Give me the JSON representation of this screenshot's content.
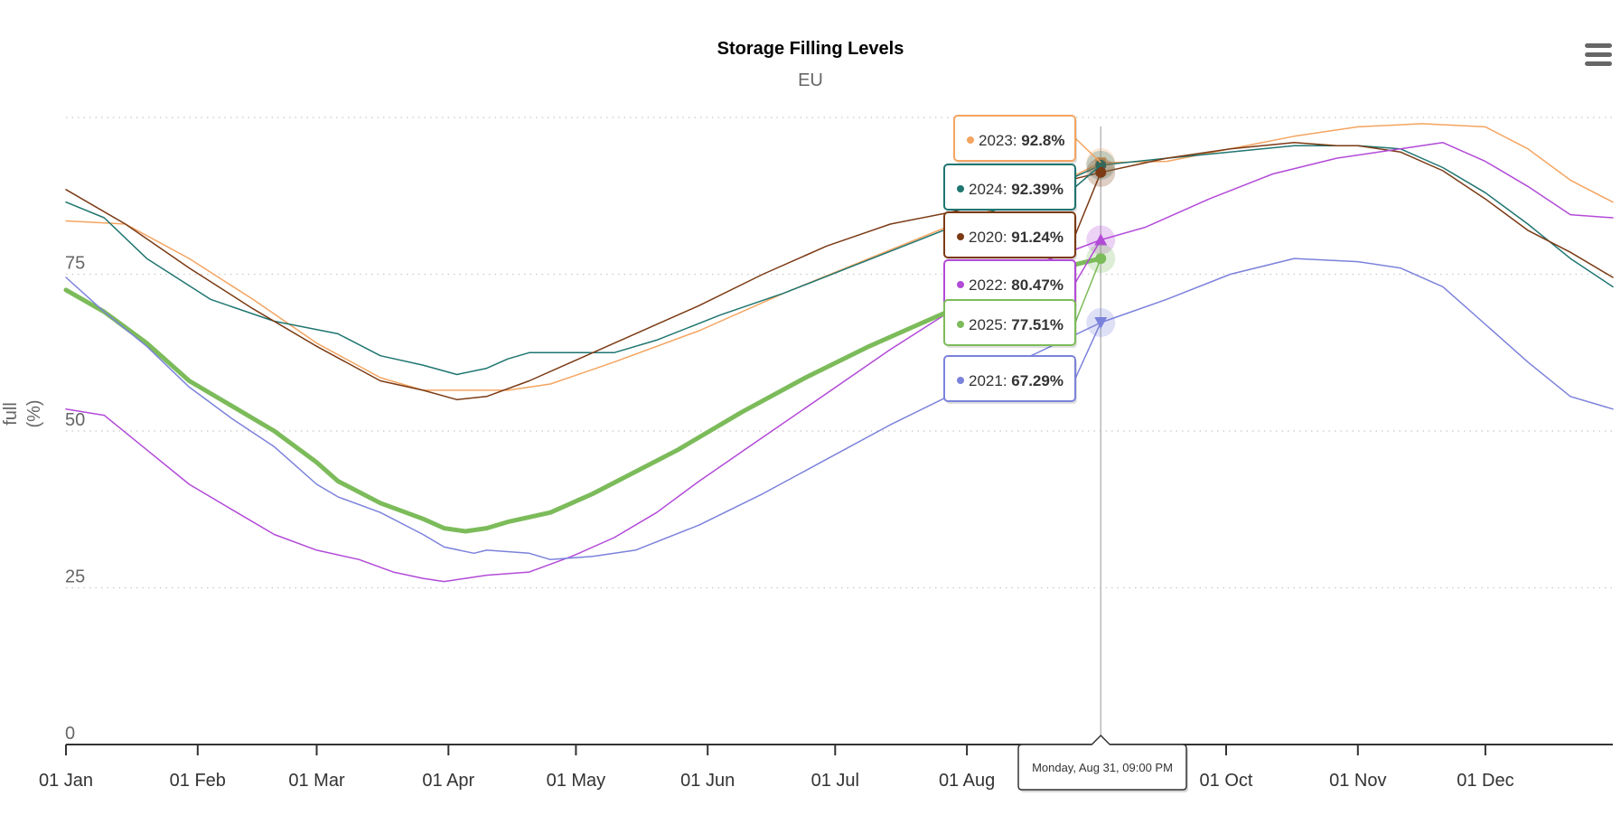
{
  "chart_data": {
    "type": "line",
    "title": "Storage Filling Levels",
    "subtitle": "EU",
    "ylabel": "full (%)",
    "ylim": [
      0,
      100
    ],
    "yticks": [
      0,
      25,
      50,
      75
    ],
    "grid": "horizontal dotted",
    "xlim": [
      "01 Jan",
      "31 Dec"
    ],
    "x_ticks": [
      {
        "label": "01 Jan",
        "day": 1
      },
      {
        "label": "01 Feb",
        "day": 32
      },
      {
        "label": "01 Mar",
        "day": 60
      },
      {
        "label": "01 Apr",
        "day": 91
      },
      {
        "label": "01 May",
        "day": 121
      },
      {
        "label": "01 Jun",
        "day": 152
      },
      {
        "label": "01 Jul",
        "day": 182
      },
      {
        "label": "01 Aug",
        "day": 213
      },
      {
        "label": "01 Sep",
        "day": 244
      },
      {
        "label": "01 Oct",
        "day": 274
      },
      {
        "label": "01 Nov",
        "day": 305
      },
      {
        "label": "01 Dec",
        "day": 335
      }
    ],
    "hover": {
      "date_label": "Monday, Aug 31, 09:00 PM",
      "day": 244.5,
      "entries": [
        {
          "year": "2023",
          "value_label": "92.8%"
        },
        {
          "year": "2024",
          "value_label": "92.39%"
        },
        {
          "year": "2020",
          "value_label": "91.24%"
        },
        {
          "year": "2022",
          "value_label": "80.47%"
        },
        {
          "year": "2025",
          "value_label": "77.51%"
        },
        {
          "year": "2021",
          "value_label": "67.29%"
        }
      ]
    },
    "series": [
      {
        "name": "2023",
        "color": "#f4a460",
        "marker": "square",
        "stroke": 1.5,
        "points": [
          [
            1,
            83.5
          ],
          [
            15,
            83
          ],
          [
            30,
            77.5
          ],
          [
            45,
            71
          ],
          [
            60,
            64
          ],
          [
            75,
            58.5
          ],
          [
            85,
            56.5
          ],
          [
            95,
            56.5
          ],
          [
            105,
            56.5
          ],
          [
            115,
            57.5
          ],
          [
            130,
            61
          ],
          [
            150,
            66
          ],
          [
            170,
            72
          ],
          [
            190,
            77.5
          ],
          [
            210,
            83
          ],
          [
            230,
            88
          ],
          [
            244.5,
            92.8
          ],
          [
            260,
            93
          ],
          [
            275,
            95
          ],
          [
            290,
            97
          ],
          [
            305,
            98.5
          ],
          [
            320,
            99
          ],
          [
            335,
            98.5
          ],
          [
            345,
            95
          ],
          [
            355,
            90
          ],
          [
            365,
            86.5
          ]
        ]
      },
      {
        "name": "2024",
        "color": "#1f7570",
        "marker": "circle",
        "stroke": 1.5,
        "points": [
          [
            1,
            86.5
          ],
          [
            10,
            84
          ],
          [
            20,
            77.5
          ],
          [
            35,
            71
          ],
          [
            50,
            67.5
          ],
          [
            65,
            65.5
          ],
          [
            75,
            62
          ],
          [
            85,
            60.5
          ],
          [
            93,
            59
          ],
          [
            100,
            60
          ],
          [
            105,
            61.5
          ],
          [
            110,
            62.5
          ],
          [
            120,
            62.5
          ],
          [
            130,
            62.5
          ],
          [
            140,
            64.5
          ],
          [
            155,
            68.5
          ],
          [
            170,
            72
          ],
          [
            185,
            76
          ],
          [
            200,
            80
          ],
          [
            215,
            84
          ],
          [
            230,
            88
          ],
          [
            244.5,
            92.39
          ],
          [
            260,
            93.5
          ],
          [
            275,
            94.5
          ],
          [
            290,
            95.5
          ],
          [
            305,
            95.5
          ],
          [
            315,
            95
          ],
          [
            325,
            92
          ],
          [
            335,
            88
          ],
          [
            345,
            83
          ],
          [
            355,
            77.5
          ],
          [
            365,
            73
          ]
        ]
      },
      {
        "name": "2020",
        "color": "#7b3a14",
        "marker": "circle",
        "stroke": 1.5,
        "points": [
          [
            1,
            88.5
          ],
          [
            15,
            83
          ],
          [
            30,
            76
          ],
          [
            45,
            69.5
          ],
          [
            60,
            63.5
          ],
          [
            75,
            58
          ],
          [
            85,
            56.5
          ],
          [
            93,
            55
          ],
          [
            100,
            55.5
          ],
          [
            110,
            58
          ],
          [
            120,
            61
          ],
          [
            135,
            65.5
          ],
          [
            150,
            70
          ],
          [
            165,
            75
          ],
          [
            180,
            79.5
          ],
          [
            195,
            83
          ],
          [
            210,
            85
          ],
          [
            225,
            88
          ],
          [
            244.5,
            91.24
          ],
          [
            260,
            93.5
          ],
          [
            275,
            95
          ],
          [
            290,
            96
          ],
          [
            300,
            95.5
          ],
          [
            305,
            95.5
          ],
          [
            315,
            94.5
          ],
          [
            325,
            91.5
          ],
          [
            335,
            87
          ],
          [
            345,
            82
          ],
          [
            355,
            78.5
          ],
          [
            365,
            74.5
          ]
        ]
      },
      {
        "name": "2022",
        "color": "#b24ad8",
        "marker": "triangle",
        "stroke": 1.5,
        "points": [
          [
            1,
            53.5
          ],
          [
            10,
            52.5
          ],
          [
            20,
            47
          ],
          [
            30,
            41.5
          ],
          [
            40,
            37.5
          ],
          [
            50,
            33.5
          ],
          [
            60,
            31
          ],
          [
            70,
            29.5
          ],
          [
            78,
            27.5
          ],
          [
            85,
            26.5
          ],
          [
            90,
            26
          ],
          [
            95,
            26.5
          ],
          [
            100,
            27
          ],
          [
            110,
            27.5
          ],
          [
            120,
            30
          ],
          [
            130,
            33
          ],
          [
            140,
            37
          ],
          [
            150,
            42
          ],
          [
            165,
            49
          ],
          [
            180,
            56
          ],
          [
            195,
            63
          ],
          [
            210,
            69.5
          ],
          [
            225,
            75.5
          ],
          [
            244.5,
            80.47
          ],
          [
            255,
            82.5
          ],
          [
            270,
            87
          ],
          [
            285,
            91
          ],
          [
            300,
            93.5
          ],
          [
            315,
            95
          ],
          [
            325,
            96
          ],
          [
            335,
            93
          ],
          [
            345,
            89
          ],
          [
            355,
            84.5
          ],
          [
            365,
            84
          ]
        ]
      },
      {
        "name": "2025",
        "color": "#7cbb5a",
        "marker": "circle",
        "stroke": 5,
        "points": [
          [
            1,
            72.5
          ],
          [
            10,
            69
          ],
          [
            20,
            64
          ],
          [
            30,
            58
          ],
          [
            40,
            54
          ],
          [
            50,
            50
          ],
          [
            60,
            45
          ],
          [
            65,
            42
          ],
          [
            75,
            38.5
          ],
          [
            85,
            36
          ],
          [
            90,
            34.5
          ],
          [
            95,
            34
          ],
          [
            100,
            34.5
          ],
          [
            105,
            35.5
          ],
          [
            115,
            37
          ],
          [
            125,
            40
          ],
          [
            135,
            43.5
          ],
          [
            145,
            47
          ],
          [
            160,
            53
          ],
          [
            175,
            58.5
          ],
          [
            190,
            63.5
          ],
          [
            205,
            68
          ],
          [
            220,
            72.5
          ],
          [
            235,
            76
          ],
          [
            244.5,
            77.51
          ]
        ]
      },
      {
        "name": "2021",
        "color": "#7b82db",
        "marker": "triangle-down",
        "stroke": 1.5,
        "points": [
          [
            1,
            74.5
          ],
          [
            10,
            69
          ],
          [
            20,
            63.5
          ],
          [
            30,
            57
          ],
          [
            40,
            52
          ],
          [
            50,
            47.5
          ],
          [
            60,
            41.5
          ],
          [
            65,
            39.5
          ],
          [
            75,
            37
          ],
          [
            85,
            33.5
          ],
          [
            90,
            31.5
          ],
          [
            97,
            30.5
          ],
          [
            100,
            31
          ],
          [
            110,
            30.5
          ],
          [
            115,
            29.5
          ],
          [
            125,
            30
          ],
          [
            135,
            31
          ],
          [
            150,
            35
          ],
          [
            165,
            40
          ],
          [
            180,
            45.5
          ],
          [
            195,
            51
          ],
          [
            210,
            56
          ],
          [
            225,
            61
          ],
          [
            244.5,
            67.29
          ],
          [
            260,
            71
          ],
          [
            275,
            75
          ],
          [
            290,
            77.5
          ],
          [
            305,
            77
          ],
          [
            315,
            76
          ],
          [
            325,
            73
          ],
          [
            335,
            67
          ],
          [
            345,
            61
          ],
          [
            355,
            55.5
          ],
          [
            365,
            53.5
          ]
        ]
      }
    ]
  },
  "ui": {
    "menu_icon": "hamburger-menu-icon"
  }
}
